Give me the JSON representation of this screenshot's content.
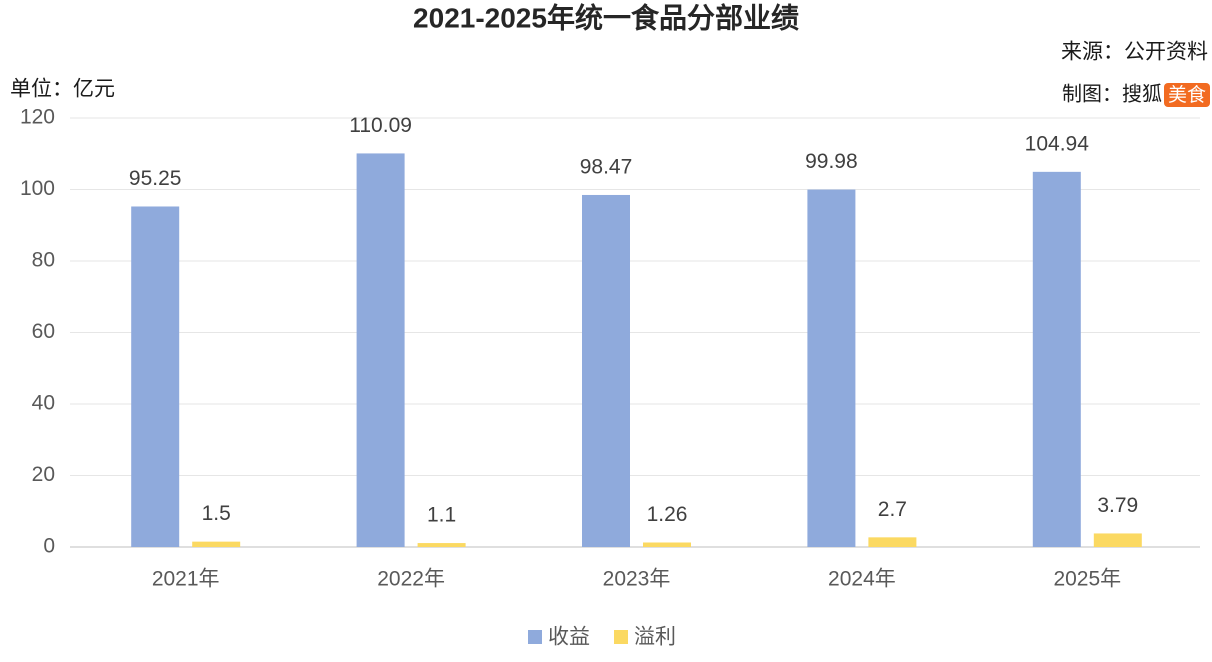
{
  "chart_data": {
    "type": "bar",
    "title": "2021-2025年统一食品分部业绩",
    "unit_label": "单位：亿元",
    "source": "来源：公开资料",
    "credit": {
      "text": "制图：搜狐",
      "badge": "美食"
    },
    "categories": [
      "2021年",
      "2022年",
      "2023年",
      "2024年",
      "2025年"
    ],
    "series": [
      {
        "name": "收益",
        "color": "#8faadc",
        "values": [
          95.25,
          110.09,
          98.47,
          99.98,
          104.94
        ]
      },
      {
        "name": "溢利",
        "color": "#fbd962",
        "values": [
          1.5,
          1.1,
          1.26,
          2.7,
          3.79
        ]
      }
    ],
    "ylim": [
      0,
      120
    ],
    "yticks": [
      0,
      20,
      40,
      60,
      80,
      100,
      120
    ],
    "grid": true,
    "legend": "bottom"
  }
}
